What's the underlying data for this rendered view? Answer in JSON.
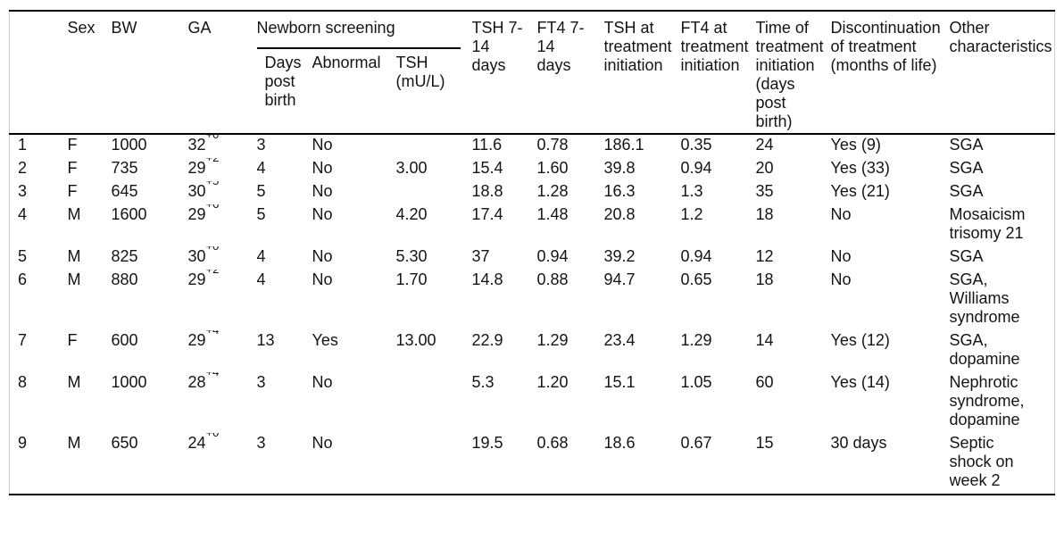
{
  "table": {
    "columns": {
      "row_label": "",
      "sex": "Sex",
      "bw": "BW",
      "ga": "GA",
      "newborn_screening_group": "Newborn screening",
      "screening_days": "Days\npost\nbirth",
      "screening_abnormal": "Abnormal",
      "screening_tsh": "TSH\n(mU/L)",
      "tsh_7_14": "TSH 7-\n14\ndays",
      "ft4_7_14": "FT4 7-\n14\ndays",
      "tsh_init": "TSH at\ntreatment\ninitiation",
      "ft4_init": "FT4 at\ntreatment\ninitiation",
      "time_init": "Time of\ntreatment\ninitiation\n(days\npost\nbirth)",
      "discontinuation": "Discontinuation\nof treatment\n(months of life)",
      "other": "Other\ncharacteristics"
    },
    "rows": [
      {
        "id": "1",
        "sex": "F",
        "bw": "1000",
        "ga_weeks": "32",
        "ga_days": "+0",
        "screening_days": "3",
        "screening_abnormal": "No",
        "screening_tsh": "",
        "tsh_7_14": "11.6",
        "ft4_7_14": "0.78",
        "tsh_init": "186.1",
        "ft4_init": "0.35",
        "time_init": "24",
        "discontinuation": "Yes (9)",
        "other": "SGA"
      },
      {
        "id": "2",
        "sex": "F",
        "bw": "735",
        "ga_weeks": "29",
        "ga_days": "+2",
        "screening_days": "4",
        "screening_abnormal": "No",
        "screening_tsh": "3.00",
        "tsh_7_14": "15.4",
        "ft4_7_14": "1.60",
        "tsh_init": "39.8",
        "ft4_init": "0.94",
        "time_init": "20",
        "discontinuation": "Yes (33)",
        "other": "SGA"
      },
      {
        "id": "3",
        "sex": "F",
        "bw": "645",
        "ga_weeks": "30",
        "ga_days": "+5",
        "screening_days": "5",
        "screening_abnormal": "No",
        "screening_tsh": "",
        "tsh_7_14": "18.8",
        "ft4_7_14": "1.28",
        "tsh_init": "16.3",
        "ft4_init": "1.3",
        "time_init": "35",
        "discontinuation": "Yes (21)",
        "other": "SGA"
      },
      {
        "id": "4",
        "sex": "M",
        "bw": "1600",
        "ga_weeks": "29",
        "ga_days": "+6",
        "screening_days": "5",
        "screening_abnormal": "No",
        "screening_tsh": "4.20",
        "tsh_7_14": "17.4",
        "ft4_7_14": "1.48",
        "tsh_init": "20.8",
        "ft4_init": "1.2",
        "time_init": "18",
        "discontinuation": "No",
        "other": "Mosaicism\ntrisomy 21"
      },
      {
        "id": "5",
        "sex": "M",
        "bw": "825",
        "ga_weeks": "30",
        "ga_days": "+0",
        "screening_days": "4",
        "screening_abnormal": "No",
        "screening_tsh": "5.30",
        "tsh_7_14": "37",
        "ft4_7_14": "0.94",
        "tsh_init": "39.2",
        "ft4_init": "0.94",
        "time_init": "12",
        "discontinuation": "No",
        "other": "SGA"
      },
      {
        "id": "6",
        "sex": "M",
        "bw": "880",
        "ga_weeks": "29",
        "ga_days": "+2",
        "screening_days": "4",
        "screening_abnormal": "No",
        "screening_tsh": "1.70",
        "tsh_7_14": "14.8",
        "ft4_7_14": "0.88",
        "tsh_init": "94.7",
        "ft4_init": "0.65",
        "time_init": "18",
        "discontinuation": "No",
        "other": "SGA,\nWilliams\nsyndrome"
      },
      {
        "id": "7",
        "sex": "F",
        "bw": "600",
        "ga_weeks": "29",
        "ga_days": "+4",
        "screening_days": "13",
        "screening_abnormal": "Yes",
        "screening_tsh": "13.00",
        "tsh_7_14": "22.9",
        "ft4_7_14": "1.29",
        "tsh_init": "23.4",
        "ft4_init": "1.29",
        "time_init": "14",
        "discontinuation": "Yes (12)",
        "other": "SGA,\ndopamine"
      },
      {
        "id": "8",
        "sex": "M",
        "bw": "1000",
        "ga_weeks": "28",
        "ga_days": "+4",
        "screening_days": "3",
        "screening_abnormal": "No",
        "screening_tsh": "",
        "tsh_7_14": "5.3",
        "ft4_7_14": "1.20",
        "tsh_init": "15.1",
        "ft4_init": "1.05",
        "time_init": "60",
        "discontinuation": "Yes (14)",
        "other": "Nephrotic\nsyndrome,\ndopamine"
      },
      {
        "id": "9",
        "sex": "M",
        "bw": "650",
        "ga_weeks": "24",
        "ga_days": "+0",
        "screening_days": "3",
        "screening_abnormal": "No",
        "screening_tsh": "",
        "tsh_7_14": "19.5",
        "ft4_7_14": "0.68",
        "tsh_init": "18.6",
        "ft4_init": "0.67",
        "time_init": "15",
        "discontinuation": "30 days",
        "other": "Septic\nshock on\nweek 2"
      }
    ]
  }
}
